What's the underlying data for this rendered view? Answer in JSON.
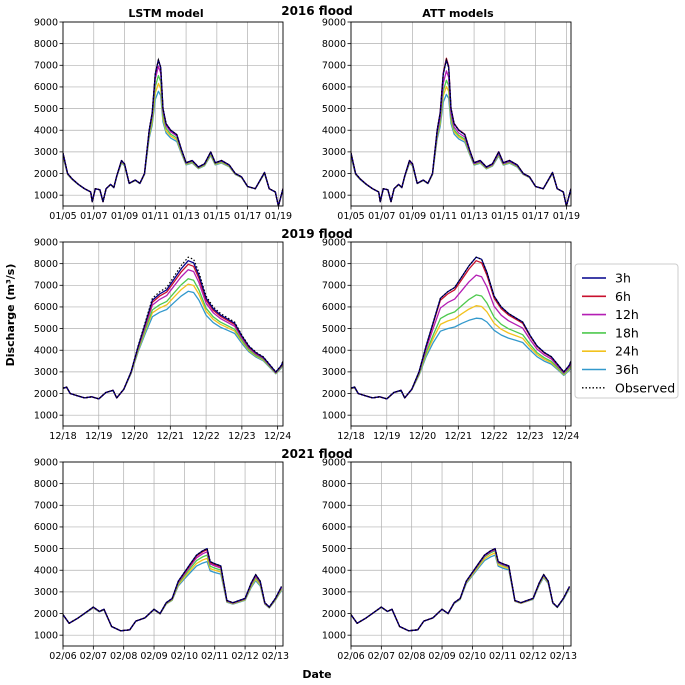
{
  "figure": {
    "col_titles": [
      "LSTM model",
      "ATT models"
    ],
    "ylabel": "Discharge (m³/s)",
    "xlabel": "Date"
  },
  "legend": {
    "entries": [
      {
        "label": "3h",
        "color": "#00008b",
        "style": "solid"
      },
      {
        "label": "6h",
        "color": "#c8102e",
        "style": "solid"
      },
      {
        "label": "12h",
        "color": "#b41eb4",
        "style": "solid"
      },
      {
        "label": "18h",
        "color": "#4ec94e",
        "style": "solid"
      },
      {
        "label": "24h",
        "color": "#f2c21e",
        "style": "solid"
      },
      {
        "label": "36h",
        "color": "#3399cc",
        "style": "solid"
      },
      {
        "label": "Observed",
        "color": "#000000",
        "style": "dotted"
      }
    ]
  },
  "chart_data": [
    {
      "type": "line",
      "title": "2016 flood",
      "ylim": [
        500,
        9000
      ],
      "yticks": [
        1000,
        2000,
        3000,
        4000,
        5000,
        6000,
        7000,
        8000,
        9000
      ],
      "xlim": [
        0,
        14.3
      ],
      "xticks": [
        0,
        2,
        4,
        6,
        8,
        10,
        12,
        14
      ],
      "xticklabels": [
        "01/05",
        "01/07",
        "01/09",
        "01/11",
        "01/13",
        "01/15",
        "01/17",
        "01/19"
      ],
      "observed": [
        [
          0,
          2950
        ],
        [
          0.3,
          2000
        ],
        [
          0.6,
          1750
        ],
        [
          1,
          1500
        ],
        [
          1.4,
          1300
        ],
        [
          1.8,
          1150
        ],
        [
          1.9,
          700
        ],
        [
          2.1,
          1300
        ],
        [
          2.4,
          1250
        ],
        [
          2.6,
          700
        ],
        [
          2.8,
          1300
        ],
        [
          3.1,
          1500
        ],
        [
          3.3,
          1350
        ],
        [
          3.5,
          1900
        ],
        [
          3.8,
          2600
        ],
        [
          4,
          2450
        ],
        [
          4.3,
          1550
        ],
        [
          4.7,
          1700
        ],
        [
          5,
          1550
        ],
        [
          5.3,
          2000
        ],
        [
          5.6,
          4000
        ],
        [
          5.8,
          4800
        ],
        [
          6.0,
          6600
        ],
        [
          6.2,
          7250
        ],
        [
          6.35,
          6900
        ],
        [
          6.5,
          5000
        ],
        [
          6.7,
          4300
        ],
        [
          7,
          4000
        ],
        [
          7.4,
          3800
        ],
        [
          7.7,
          3100
        ],
        [
          8,
          2500
        ],
        [
          8.4,
          2600
        ],
        [
          8.8,
          2300
        ],
        [
          9.2,
          2450
        ],
        [
          9.6,
          3000
        ],
        [
          9.9,
          2500
        ],
        [
          10.3,
          2600
        ],
        [
          10.8,
          2400
        ],
        [
          11.2,
          2000
        ],
        [
          11.6,
          1850
        ],
        [
          12,
          1400
        ],
        [
          12.5,
          1300
        ],
        [
          13.1,
          2050
        ],
        [
          13.4,
          1300
        ],
        [
          13.8,
          1150
        ],
        [
          14,
          500
        ],
        [
          14.3,
          1300
        ]
      ],
      "lstm_peak_scale": [
        1.0,
        1.0,
        0.96,
        0.9,
        0.85,
        0.8
      ],
      "att_peak_scale": [
        1.0,
        1.01,
        0.93,
        0.87,
        0.83,
        0.78
      ]
    },
    {
      "type": "line",
      "title": "2019 flood",
      "ylim": [
        500,
        9000
      ],
      "yticks": [
        1000,
        2000,
        3000,
        4000,
        5000,
        6000,
        7000,
        8000,
        9000
      ],
      "xlim": [
        0,
        6.15
      ],
      "xticks": [
        0,
        1,
        2,
        3,
        4,
        5,
        6
      ],
      "xticklabels": [
        "12/18",
        "12/19",
        "12/20",
        "12/21",
        "12/22",
        "12/23",
        "12/24"
      ],
      "observed": [
        [
          0,
          2250
        ],
        [
          0.1,
          2300
        ],
        [
          0.2,
          2000
        ],
        [
          0.4,
          1900
        ],
        [
          0.6,
          1800
        ],
        [
          0.8,
          1850
        ],
        [
          1,
          1750
        ],
        [
          1.2,
          2050
        ],
        [
          1.4,
          2150
        ],
        [
          1.5,
          1800
        ],
        [
          1.7,
          2200
        ],
        [
          1.9,
          3000
        ],
        [
          2.1,
          4200
        ],
        [
          2.3,
          5300
        ],
        [
          2.5,
          6400
        ],
        [
          2.7,
          6700
        ],
        [
          2.9,
          6900
        ],
        [
          3.1,
          7400
        ],
        [
          3.3,
          7900
        ],
        [
          3.5,
          8300
        ],
        [
          3.65,
          8200
        ],
        [
          3.8,
          7600
        ],
        [
          4.0,
          6500
        ],
        [
          4.2,
          6000
        ],
        [
          4.4,
          5700
        ],
        [
          4.6,
          5500
        ],
        [
          4.8,
          5300
        ],
        [
          5.0,
          4700
        ],
        [
          5.2,
          4200
        ],
        [
          5.4,
          3900
        ],
        [
          5.6,
          3700
        ],
        [
          5.8,
          3300
        ],
        [
          5.95,
          3000
        ],
        [
          6.1,
          3300
        ],
        [
          6.15,
          3500
        ]
      ],
      "lstm_peak_scale": [
        0.98,
        0.96,
        0.93,
        0.88,
        0.85,
        0.81
      ],
      "att_peak_scale": [
        1.0,
        0.98,
        0.9,
        0.79,
        0.73,
        0.66
      ]
    },
    {
      "type": "line",
      "title": "2021 flood",
      "ylim": [
        500,
        9000
      ],
      "yticks": [
        1000,
        2000,
        3000,
        4000,
        5000,
        6000,
        7000,
        8000,
        9000
      ],
      "xlim": [
        0,
        7.25
      ],
      "xticks": [
        0,
        1,
        2,
        3,
        4,
        5,
        6,
        7
      ],
      "xticklabels": [
        "02/06",
        "02/07",
        "02/08",
        "02/09",
        "02/10",
        "02/11",
        "02/12",
        "02/13"
      ],
      "observed": [
        [
          0,
          1950
        ],
        [
          0.2,
          1550
        ],
        [
          0.5,
          1800
        ],
        [
          0.8,
          2100
        ],
        [
          1,
          2300
        ],
        [
          1.2,
          2100
        ],
        [
          1.35,
          2200
        ],
        [
          1.6,
          1400
        ],
        [
          1.9,
          1200
        ],
        [
          2.2,
          1250
        ],
        [
          2.4,
          1650
        ],
        [
          2.7,
          1800
        ],
        [
          3,
          2200
        ],
        [
          3.2,
          2000
        ],
        [
          3.4,
          2500
        ],
        [
          3.6,
          2700
        ],
        [
          3.8,
          3500
        ],
        [
          4.0,
          3900
        ],
        [
          4.2,
          4300
        ],
        [
          4.4,
          4700
        ],
        [
          4.6,
          4900
        ],
        [
          4.75,
          5000
        ],
        [
          4.85,
          4400
        ],
        [
          5.0,
          4300
        ],
        [
          5.2,
          4200
        ],
        [
          5.4,
          2600
        ],
        [
          5.6,
          2500
        ],
        [
          5.8,
          2600
        ],
        [
          6.0,
          2700
        ],
        [
          6.2,
          3400
        ],
        [
          6.35,
          3800
        ],
        [
          6.5,
          3500
        ],
        [
          6.65,
          2500
        ],
        [
          6.8,
          2300
        ],
        [
          7.0,
          2700
        ],
        [
          7.2,
          3250
        ]
      ],
      "lstm_peak_scale": [
        1.0,
        0.99,
        0.97,
        0.94,
        0.91,
        0.88
      ],
      "att_peak_scale": [
        1.0,
        1.0,
        0.99,
        0.98,
        0.96,
        0.94
      ]
    }
  ]
}
